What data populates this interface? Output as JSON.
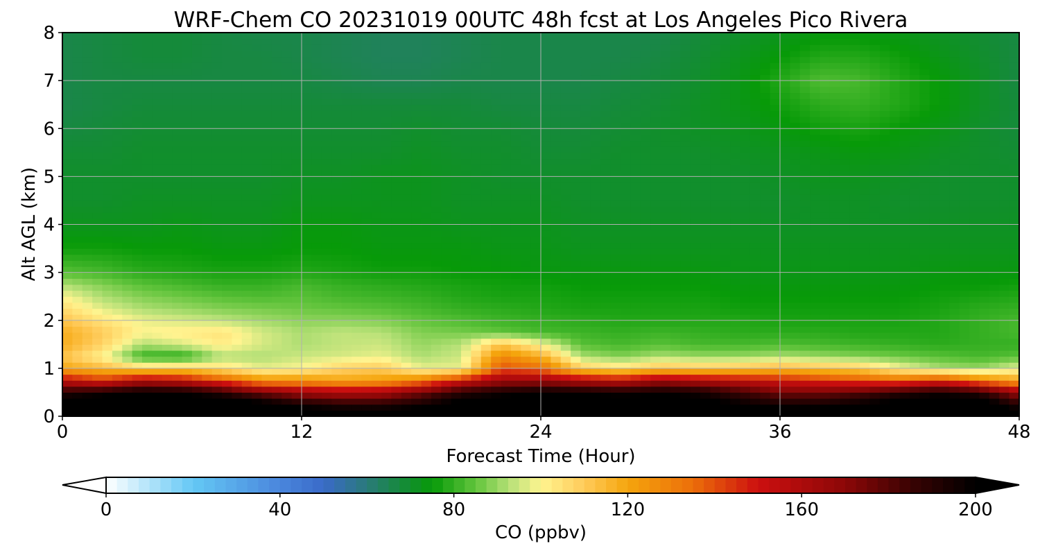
{
  "chart_data": {
    "type": "heatmap",
    "title": "WRF-Chem CO  20231019 00UTC 48h fcst at Los Angeles Pico Rivera",
    "xlabel": "Forecast Time (Hour)",
    "ylabel": "Alt AGL (km)",
    "xlim": [
      0,
      48
    ],
    "ylim": [
      0,
      8
    ],
    "xticks": [
      0,
      12,
      24,
      36,
      48
    ],
    "yticks": [
      0,
      1,
      2,
      3,
      4,
      5,
      6,
      7,
      8
    ],
    "grid": true,
    "colorbar": {
      "label": "CO  (ppbv)",
      "range": [
        0,
        200
      ],
      "ticks": [
        0,
        40,
        80,
        120,
        160,
        200
      ],
      "extend": "both",
      "orientation": "horizontal",
      "stops": [
        {
          "v": 0,
          "c": "#ffffff"
        },
        {
          "v": 20,
          "c": "#64c8f5"
        },
        {
          "v": 40,
          "c": "#4a86dc"
        },
        {
          "v": 50,
          "c": "#3a6ac8"
        },
        {
          "v": 60,
          "c": "#2a7a7a"
        },
        {
          "v": 68,
          "c": "#158a3a"
        },
        {
          "v": 75,
          "c": "#079a08"
        },
        {
          "v": 85,
          "c": "#62c43c"
        },
        {
          "v": 93,
          "c": "#b8e178"
        },
        {
          "v": 100,
          "c": "#fff490"
        },
        {
          "v": 110,
          "c": "#ffcb5a"
        },
        {
          "v": 120,
          "c": "#f5a50d"
        },
        {
          "v": 135,
          "c": "#ec6e0a"
        },
        {
          "v": 150,
          "c": "#cc0f0f"
        },
        {
          "v": 170,
          "c": "#8c0707"
        },
        {
          "v": 185,
          "c": "#3a0303"
        },
        {
          "v": 200,
          "c": "#000000"
        }
      ]
    },
    "hours": [
      0,
      2,
      4,
      6,
      8,
      10,
      12,
      14,
      16,
      18,
      20,
      22,
      24,
      26,
      28,
      30,
      32,
      34,
      36,
      38,
      40,
      42,
      44,
      46,
      48
    ],
    "altitudes_km": [
      0,
      0.25,
      0.5,
      0.75,
      1,
      1.25,
      1.5,
      1.75,
      2,
      2.25,
      2.5,
      2.75,
      3,
      3.5,
      4,
      4.5,
      5,
      5.5,
      6,
      6.5,
      7,
      7.5,
      8
    ],
    "values_ppbv": [
      [
        215,
        215,
        215,
        215,
        215,
        215,
        212,
        212,
        212,
        215,
        215,
        215,
        215,
        215,
        215,
        215,
        212,
        212,
        212,
        212,
        212,
        215,
        215,
        215,
        210
      ],
      [
        210,
        212,
        212,
        212,
        210,
        205,
        195,
        190,
        190,
        195,
        205,
        210,
        210,
        210,
        210,
        210,
        205,
        200,
        195,
        195,
        200,
        205,
        210,
        210,
        190
      ],
      [
        190,
        195,
        200,
        198,
        190,
        175,
        165,
        160,
        162,
        175,
        190,
        195,
        200,
        198,
        195,
        198,
        195,
        185,
        175,
        175,
        180,
        190,
        195,
        190,
        165
      ],
      [
        155,
        145,
        160,
        155,
        140,
        125,
        125,
        120,
        122,
        130,
        150,
        165,
        165,
        160,
        155,
        165,
        160,
        155,
        150,
        145,
        140,
        135,
        145,
        130,
        120
      ],
      [
        120,
        115,
        108,
        110,
        105,
        98,
        100,
        108,
        110,
        98,
        98,
        140,
        135,
        110,
        105,
        112,
        110,
        112,
        115,
        112,
        110,
        100,
        92,
        90,
        98
      ],
      [
        112,
        100,
        80,
        78,
        92,
        92,
        95,
        96,
        98,
        92,
        95,
        128,
        118,
        92,
        88,
        92,
        90,
        90,
        92,
        90,
        88,
        86,
        84,
        82,
        84
      ],
      [
        118,
        108,
        92,
        96,
        102,
        96,
        92,
        94,
        95,
        90,
        93,
        112,
        100,
        84,
        82,
        84,
        82,
        82,
        83,
        82,
        81,
        80,
        79,
        80,
        80
      ],
      [
        118,
        110,
        100,
        102,
        104,
        96,
        92,
        94,
        93,
        88,
        87,
        85,
        82,
        81,
        80,
        81,
        80,
        79,
        79,
        79,
        78,
        78,
        78,
        80,
        82
      ],
      [
        112,
        104,
        98,
        96,
        94,
        91,
        89,
        89,
        88,
        85,
        83,
        81,
        80,
        79,
        78,
        78,
        78,
        78,
        77,
        77,
        77,
        77,
        78,
        80,
        82
      ],
      [
        106,
        97,
        92,
        90,
        88,
        87,
        86,
        85,
        84,
        82,
        80,
        79,
        78,
        77,
        77,
        77,
        77,
        76,
        76,
        76,
        76,
        76,
        77,
        79,
        80
      ],
      [
        100,
        92,
        88,
        86,
        84,
        83,
        84,
        82,
        81,
        80,
        78,
        77,
        77,
        76,
        76,
        76,
        76,
        75,
        75,
        75,
        75,
        75,
        76,
        77,
        78
      ],
      [
        92,
        88,
        84,
        82,
        80,
        80,
        82,
        80,
        79,
        78,
        77,
        76,
        76,
        75,
        75,
        75,
        75,
        74,
        74,
        74,
        74,
        74,
        75,
        75,
        76
      ],
      [
        84,
        82,
        79,
        78,
        77,
        77,
        78,
        77,
        76,
        76,
        75,
        75,
        74,
        74,
        74,
        74,
        74,
        73,
        73,
        73,
        73,
        73,
        74,
        74,
        74
      ],
      [
        76,
        76,
        75,
        75,
        74,
        74,
        75,
        75,
        74,
        74,
        74,
        73,
        73,
        72,
        72,
        72,
        72,
        72,
        72,
        72,
        72,
        72,
        72,
        72,
        72
      ],
      [
        72,
        72,
        72,
        73,
        72,
        72,
        74,
        74,
        73,
        73,
        72,
        72,
        72,
        71,
        71,
        71,
        71,
        71,
        71,
        71,
        71,
        71,
        71,
        71,
        71
      ],
      [
        70,
        70,
        71,
        71,
        71,
        71,
        72,
        72,
        72,
        72,
        71,
        71,
        71,
        70,
        70,
        70,
        70,
        70,
        70,
        71,
        71,
        70,
        70,
        70,
        70
      ],
      [
        70,
        70,
        70,
        70,
        70,
        70,
        71,
        71,
        72,
        72,
        71,
        70,
        70,
        70,
        70,
        70,
        70,
        70,
        71,
        72,
        72,
        71,
        70,
        70,
        70
      ],
      [
        69,
        69,
        70,
        70,
        70,
        70,
        70,
        70,
        70,
        71,
        70,
        70,
        69,
        69,
        70,
        70,
        70,
        71,
        72,
        73,
        74,
        73,
        71,
        70,
        69
      ],
      [
        67,
        68,
        69,
        69,
        69,
        69,
        69,
        69,
        69,
        70,
        69,
        69,
        68,
        68,
        69,
        70,
        71,
        72,
        74,
        76,
        77,
        75,
        73,
        70,
        68
      ],
      [
        66,
        67,
        68,
        68,
        68,
        68,
        68,
        68,
        68,
        68,
        68,
        67,
        67,
        67,
        68,
        69,
        71,
        73,
        76,
        79,
        80,
        78,
        75,
        71,
        68
      ],
      [
        66,
        67,
        67,
        67,
        67,
        67,
        67,
        66,
        65,
        65,
        66,
        66,
        66,
        66,
        67,
        68,
        70,
        73,
        78,
        83,
        82,
        78,
        75,
        71,
        67
      ],
      [
        66,
        67,
        68,
        68,
        67,
        67,
        66,
        65,
        64,
        64,
        65,
        66,
        66,
        66,
        66,
        67,
        69,
        72,
        75,
        78,
        78,
        76,
        73,
        70,
        67
      ],
      [
        66,
        67,
        68,
        68,
        67,
        66,
        66,
        65,
        64,
        64,
        65,
        66,
        66,
        66,
        66,
        66,
        68,
        70,
        72,
        74,
        74,
        73,
        71,
        69,
        67
      ]
    ]
  }
}
